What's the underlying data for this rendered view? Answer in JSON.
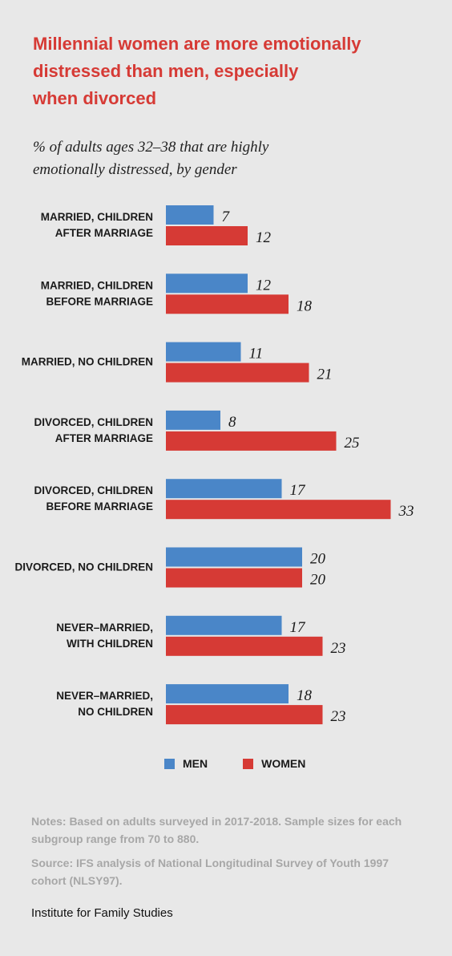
{
  "title_lines": [
    "Millennial women are more emotionally",
    "distressed than men, especially",
    "when divorced"
  ],
  "subtitle_lines": [
    "% of adults ages 32–38 that are highly",
    "emotionally distressed, by gender"
  ],
  "colors": {
    "men": "#4a86c8",
    "women": "#d63a35",
    "title": "#d63a35"
  },
  "chart_data": {
    "type": "bar",
    "orientation": "horizontal",
    "categories": [
      [
        "MARRIED, CHILDREN",
        "AFTER MARRIAGE"
      ],
      [
        "MARRIED, CHILDREN",
        "BEFORE MARRIAGE"
      ],
      [
        "MARRIED, NO CHILDREN"
      ],
      [
        "DIVORCED, CHILDREN",
        "AFTER MARRIAGE"
      ],
      [
        "DIVORCED, CHILDREN",
        "BEFORE MARRIAGE"
      ],
      [
        "DIVORCED, NO CHILDREN"
      ],
      [
        "NEVER–MARRIED,",
        "WITH CHILDREN"
      ],
      [
        "NEVER–MARRIED,",
        "NO CHILDREN"
      ]
    ],
    "series": [
      {
        "name": "MEN",
        "color": "#4a86c8",
        "values": [
          7,
          12,
          11,
          8,
          17,
          20,
          17,
          18
        ]
      },
      {
        "name": "WOMEN",
        "color": "#d63a35",
        "values": [
          12,
          18,
          21,
          25,
          33,
          20,
          23,
          23
        ]
      }
    ],
    "legend_position": "bottom",
    "grid": false
  },
  "legend": {
    "men_label": "MEN",
    "women_label": "WOMEN"
  },
  "notes": {
    "line1": "Notes: Based on adults surveyed in 2017-2018. Sample sizes for each subgroup range from 70 to 880.",
    "line2": "Source: IFS analysis of National Longitudinal Survey of Youth 1997 cohort (NLSY97)."
  },
  "footer": "Institute for Family Studies"
}
